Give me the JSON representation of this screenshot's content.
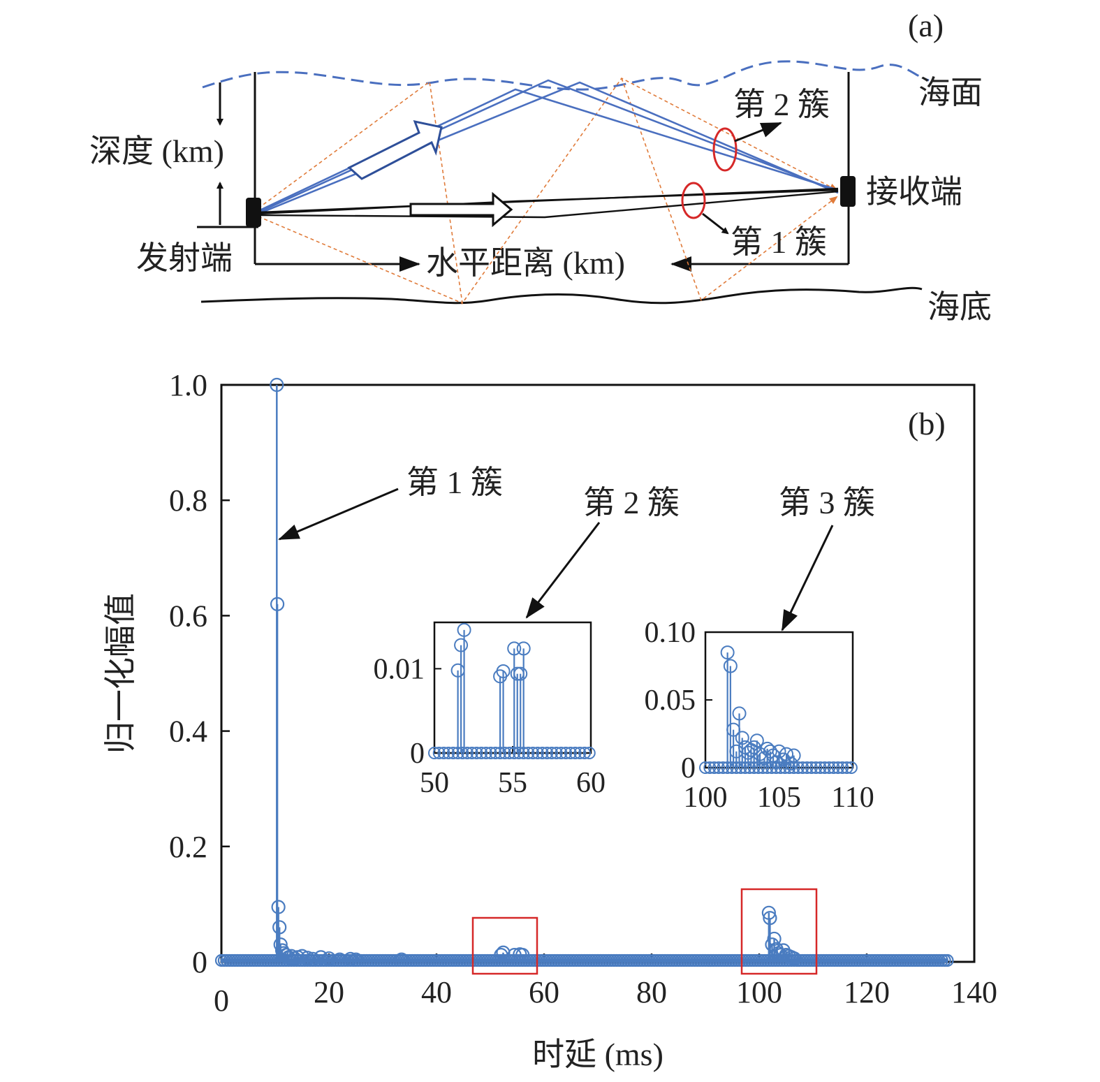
{
  "panel_a": {
    "tag": "(a)",
    "surface_label": "海面",
    "bottom_label": "海底",
    "depth_label": "深度 (km)",
    "range_label": "水平距离 (km)",
    "tx_label": "发射端",
    "rx_label": "接收端",
    "cluster1_label": "第 1 簇",
    "cluster2_label": "第 2 簇",
    "colors": {
      "surface_path": "#4a6fbf",
      "direct_path": "#1a1a1a",
      "bottom_path": "#e07b3a",
      "cluster_ring": "#d62828"
    }
  },
  "chart_data": {
    "type": "stem",
    "tag": "(b)",
    "xlabel": "时延 (ms)",
    "ylabel": "归一化幅值",
    "xlim": [
      0,
      140
    ],
    "ylim": [
      0,
      1.0
    ],
    "xticks": [
      "0",
      "20",
      "40",
      "60",
      "80",
      "100",
      "120",
      "140"
    ],
    "yticks": [
      "0",
      "0.2",
      "0.4",
      "0.6",
      "0.8",
      "1.0"
    ],
    "grid": false,
    "color": "#4a7cc0",
    "series": [
      {
        "x": [
          10.3,
          10.4,
          10.6,
          10.8,
          11.0,
          11.3,
          11.6,
          12.0,
          12.5,
          13.0,
          13.6,
          14.2,
          15.0,
          16.0,
          17.0,
          18.5,
          20.0,
          22.0,
          24.0,
          25.0,
          33.5,
          52.0,
          52.4,
          54.5,
          55.5,
          56.0,
          101.8,
          102.0,
          102.4,
          102.8,
          103.2,
          103.6,
          104.0,
          104.5,
          105.0,
          105.5,
          106.0,
          106.5
        ],
        "values": [
          1.0,
          0.62,
          0.095,
          0.06,
          0.03,
          0.02,
          0.015,
          0.012,
          0.008,
          0.01,
          0.006,
          0.008,
          0.01,
          0.007,
          0.005,
          0.008,
          0.006,
          0.004,
          0.005,
          0.004,
          0.004,
          0.012,
          0.016,
          0.012,
          0.013,
          0.012,
          0.085,
          0.076,
          0.03,
          0.04,
          0.022,
          0.015,
          0.012,
          0.02,
          0.012,
          0.01,
          0.008,
          0.006
        ]
      }
    ],
    "annotations": [
      "第 1 簇",
      "第 2 簇",
      "第 3 簇"
    ],
    "insets": [
      {
        "xlim": [
          50,
          60
        ],
        "ylim": [
          0,
          0.0155
        ],
        "xticks": [
          "50",
          "55",
          "60"
        ],
        "yticks": [
          "0",
          "0.01"
        ],
        "x": [
          51.5,
          51.7,
          51.9,
          54.2,
          54.4,
          55.1,
          55.3,
          55.5,
          55.7
        ],
        "values": [
          0.0098,
          0.0128,
          0.0146,
          0.0091,
          0.0097,
          0.0124,
          0.0094,
          0.0094,
          0.0124
        ]
      },
      {
        "xlim": [
          100,
          110
        ],
        "ylim": [
          0,
          0.1
        ],
        "xticks": [
          "100",
          "105",
          "110"
        ],
        "yticks": [
          "0",
          "0.05",
          "0.10"
        ],
        "x": [
          101.5,
          101.7,
          101.9,
          102.1,
          102.3,
          102.5,
          102.7,
          102.9,
          103.1,
          103.3,
          103.5,
          103.7,
          104.0,
          104.2,
          104.4,
          104.6,
          104.8,
          105.0,
          105.3,
          105.5,
          105.8,
          106.0
        ],
        "values": [
          0.085,
          0.075,
          0.028,
          0.012,
          0.04,
          0.022,
          0.015,
          0.011,
          0.013,
          0.015,
          0.02,
          0.01,
          0.007,
          0.014,
          0.012,
          0.009,
          0.004,
          0.012,
          0.006,
          0.01,
          0.003,
          0.009
        ]
      }
    ]
  }
}
